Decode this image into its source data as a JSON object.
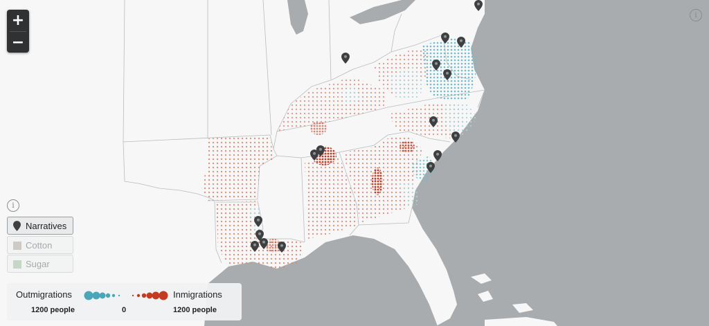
{
  "map": {
    "zoom_in": "+",
    "zoom_out": "−",
    "info_symbol": "i"
  },
  "layers": {
    "narratives": "Narratives",
    "cotton": "Cotton",
    "sugar": "Sugar"
  },
  "legend": {
    "left_title": "Outmigrations",
    "right_title": "Inmigrations",
    "left_value": "1200 people",
    "center_value": "0",
    "right_value": "1200 people"
  },
  "colors": {
    "out": "#4aa6b8",
    "in": "#c23b22",
    "land": "#f7f7f7",
    "water": "#a9acae",
    "marker": "#3d3f41"
  },
  "icons": [
    "map-marker-icon",
    "info-icon",
    "cotton-swatch-icon",
    "sugar-swatch-icon"
  ]
}
